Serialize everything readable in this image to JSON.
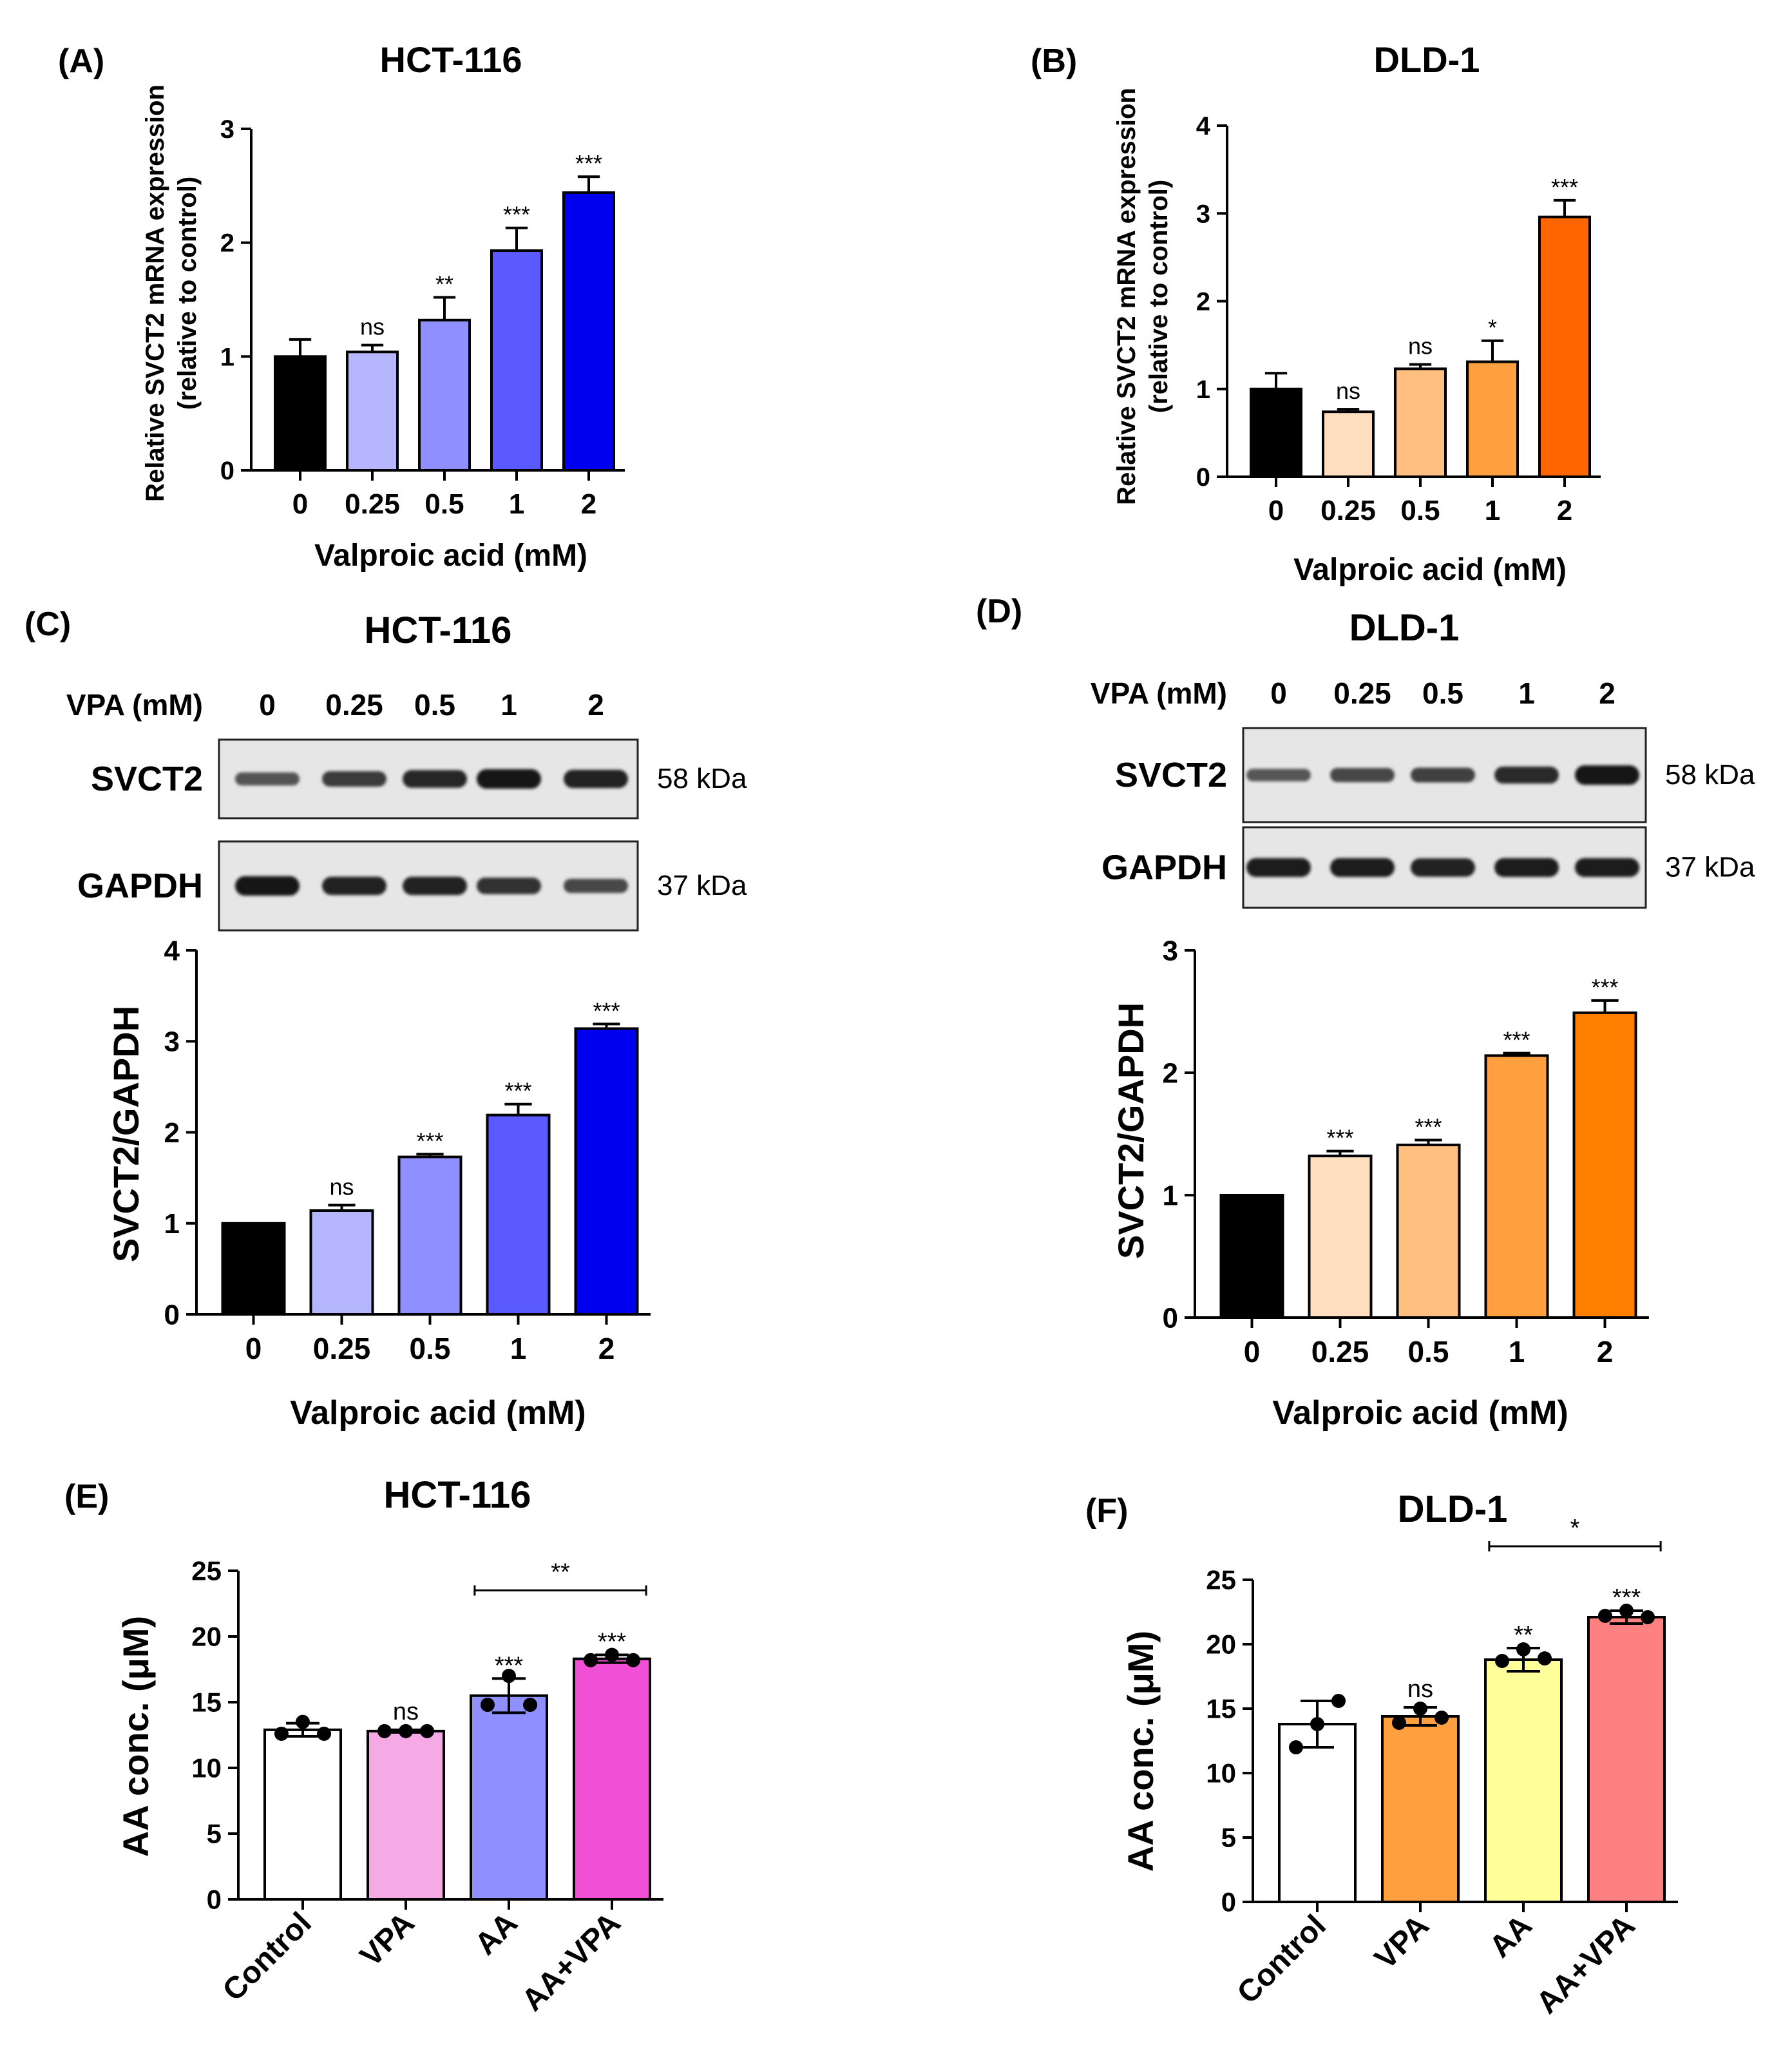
{
  "chart_data": [
    {
      "id": "A",
      "type": "bar",
      "panel_label": "(A)",
      "title": "HCT-116",
      "xlabel": "Valproic acid (mM)",
      "ylabel": [
        "Relative SVCT2 mRNA expression",
        "(relative to control)"
      ],
      "categories": [
        "0",
        "0.25",
        "0.5",
        "1",
        "2"
      ],
      "values": [
        1.0,
        1.04,
        1.32,
        1.93,
        2.44
      ],
      "errors": [
        0.15,
        0.06,
        0.2,
        0.2,
        0.14
      ],
      "significance": [
        "",
        "ns",
        "**",
        "***",
        "***"
      ],
      "ylim": [
        0,
        3
      ],
      "yticks": [
        0,
        1,
        2,
        3
      ],
      "colors": [
        "#000000",
        "#b6b6ff",
        "#8f8fff",
        "#5a5aff",
        "#0000ee"
      ]
    },
    {
      "id": "B",
      "type": "bar",
      "panel_label": "(B)",
      "title": "DLD-1",
      "xlabel": "Valproic acid (mM)",
      "ylabel": [
        "Relative SVCT2 mRNA expression",
        "(relative to control)"
      ],
      "categories": [
        "0",
        "0.25",
        "0.5",
        "1",
        "2"
      ],
      "values": [
        1.0,
        0.74,
        1.23,
        1.31,
        2.96
      ],
      "errors": [
        0.18,
        0.03,
        0.05,
        0.24,
        0.19
      ],
      "significance": [
        "",
        "ns",
        "ns",
        "*",
        "***"
      ],
      "ylim": [
        0,
        4
      ],
      "yticks": [
        0,
        1,
        2,
        3,
        4
      ],
      "colors": [
        "#000000",
        "#ffdfbf",
        "#ffbf80",
        "#ff9f40",
        "#ff6600"
      ]
    },
    {
      "id": "C",
      "type": "bar",
      "panel_label": "(C)",
      "title": "HCT-116",
      "xlabel": "Valproic acid (mM)",
      "ylabel": [
        "SVCT2/GAPDH"
      ],
      "categories": [
        "0",
        "0.25",
        "0.5",
        "1",
        "2"
      ],
      "values": [
        1.0,
        1.14,
        1.73,
        2.19,
        3.14
      ],
      "errors": [
        0.0,
        0.06,
        0.03,
        0.12,
        0.05
      ],
      "significance": [
        "",
        "ns",
        "***",
        "***",
        "***"
      ],
      "ylim": [
        0,
        4
      ],
      "yticks": [
        0,
        1,
        2,
        3,
        4
      ],
      "colors": [
        "#000000",
        "#b6b6ff",
        "#8f8fff",
        "#5a5aff",
        "#0000ee"
      ]
    },
    {
      "id": "D",
      "type": "bar",
      "panel_label": "(D)",
      "title": "DLD-1",
      "xlabel": "Valproic acid (mM)",
      "ylabel": [
        "SVCT2/GAPDH"
      ],
      "categories": [
        "0",
        "0.25",
        "0.5",
        "1",
        "2"
      ],
      "values": [
        1.0,
        1.32,
        1.41,
        2.14,
        2.49
      ],
      "errors": [
        0.0,
        0.04,
        0.04,
        0.02,
        0.1
      ],
      "significance": [
        "",
        "***",
        "***",
        "***",
        "***"
      ],
      "ylim": [
        0,
        3
      ],
      "yticks": [
        0,
        1,
        2,
        3
      ],
      "colors": [
        "#000000",
        "#ffdfbf",
        "#ffbf80",
        "#ff9f40",
        "#ff7f00"
      ]
    },
    {
      "id": "E",
      "type": "bar",
      "panel_label": "(E)",
      "title": "HCT-116",
      "xlabel": "",
      "ylabel": [
        "AA conc. (μM)"
      ],
      "categories": [
        "Control",
        "VPA",
        "AA",
        "AA+VPA"
      ],
      "values": [
        12.9,
        12.8,
        15.5,
        18.3
      ],
      "errors": [
        0.5,
        0.1,
        1.3,
        0.3
      ],
      "points": [
        [
          12.6,
          13.5,
          12.6
        ],
        [
          12.8,
          12.8,
          12.8
        ],
        [
          14.8,
          17.0,
          14.8
        ],
        [
          18.2,
          18.6,
          18.2
        ]
      ],
      "significance": [
        "",
        "ns",
        "***",
        "***"
      ],
      "bracket": {
        "from": 2,
        "to": 3,
        "label": "**"
      },
      "ylim": [
        0,
        25
      ],
      "yticks": [
        0,
        5,
        10,
        15,
        20,
        25
      ],
      "colors": [
        "#ffffff",
        "#f5aae6",
        "#8f8fff",
        "#f04fd6"
      ]
    },
    {
      "id": "F",
      "type": "bar",
      "panel_label": "(F)",
      "title": "DLD-1",
      "xlabel": "",
      "ylabel": [
        "AA conc. (μM)"
      ],
      "categories": [
        "Control",
        "VPA",
        "AA",
        "AA+VPA"
      ],
      "values": [
        13.8,
        14.4,
        18.8,
        22.1
      ],
      "errors": [
        1.8,
        0.7,
        0.9,
        0.5
      ],
      "points": [
        [
          12.0,
          13.8,
          15.6
        ],
        [
          13.9,
          15.0,
          14.3
        ],
        [
          18.7,
          19.6,
          18.9
        ],
        [
          22.2,
          22.6,
          22.1
        ]
      ],
      "significance": [
        "",
        "ns",
        "**",
        "***"
      ],
      "bracket": {
        "from": 2,
        "to": 3,
        "label": "*"
      },
      "ylim": [
        0,
        25
      ],
      "yticks": [
        0,
        5,
        10,
        15,
        20,
        25
      ],
      "colors": [
        "#ffffff",
        "#ff9f40",
        "#ffff99",
        "#ff8080"
      ]
    }
  ],
  "blots": [
    {
      "id": "C",
      "vpa_label": "VPA (mM)",
      "lanes": [
        "0",
        "0.25",
        "0.5",
        "1",
        "2"
      ],
      "rows": [
        {
          "name": "SVCT2",
          "kda": "58 kDa",
          "intensity": [
            0.35,
            0.55,
            0.75,
            0.9,
            0.8
          ]
        },
        {
          "name": "GAPDH",
          "kda": "37 kDa",
          "intensity": [
            0.9,
            0.8,
            0.8,
            0.65,
            0.45
          ]
        }
      ]
    },
    {
      "id": "D",
      "vpa_label": "VPA (mM)",
      "lanes": [
        "0",
        "0.25",
        "0.5",
        "1",
        "2"
      ],
      "rows": [
        {
          "name": "SVCT2",
          "kda": "58 kDa",
          "intensity": [
            0.3,
            0.45,
            0.5,
            0.7,
            0.9
          ]
        },
        {
          "name": "GAPDH",
          "kda": "37 kDa",
          "intensity": [
            0.85,
            0.85,
            0.8,
            0.85,
            0.85
          ]
        }
      ]
    }
  ]
}
